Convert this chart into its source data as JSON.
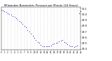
{
  "title": "Milwaukee Barometric Pressure per Minute (24 Hours)",
  "bg_color": "#ffffff",
  "dot_color": "#0000cc",
  "grid_color": "#aaaaaa",
  "ylim": [
    29.38,
    30.12
  ],
  "xlim": [
    0,
    1440
  ],
  "yticks": [
    29.4,
    29.5,
    29.6,
    29.7,
    29.8,
    29.9,
    30.0,
    30.1
  ],
  "ytick_labels": [
    "29.4",
    "29.5",
    "29.6",
    "29.7",
    "29.8",
    "29.9",
    "30.0",
    "30.1"
  ],
  "xtick_positions": [
    0,
    60,
    120,
    180,
    240,
    300,
    360,
    420,
    480,
    540,
    600,
    660,
    720,
    780,
    840,
    900,
    960,
    1020,
    1080,
    1140,
    1200,
    1260,
    1320,
    1380,
    1440
  ],
  "xtick_labels": [
    "0",
    "1",
    "2",
    "3",
    "4",
    "5",
    "6",
    "7",
    "8",
    "9",
    "10",
    "11",
    "12",
    "13",
    "14",
    "15",
    "16",
    "17",
    "18",
    "19",
    "20",
    "21",
    "22",
    "23",
    "24"
  ],
  "vgrid_positions": [
    60,
    120,
    180,
    240,
    300,
    360,
    420,
    480,
    540,
    600,
    660,
    720,
    780,
    840,
    900,
    960,
    1020,
    1080,
    1140,
    1200,
    1260,
    1320,
    1380
  ],
  "data_x": [
    0,
    30,
    60,
    90,
    120,
    150,
    180,
    210,
    240,
    270,
    300,
    330,
    360,
    390,
    420,
    450,
    480,
    510,
    540,
    570,
    600,
    630,
    660,
    690,
    720,
    750,
    780,
    810,
    840,
    870,
    900,
    930,
    960,
    990,
    1020,
    1050,
    1080,
    1110,
    1140,
    1170,
    1200,
    1230,
    1260,
    1290,
    1320,
    1350,
    1380,
    1410,
    1440
  ],
  "data_y": [
    30.08,
    30.07,
    30.05,
    30.04,
    30.02,
    30.0,
    29.99,
    29.97,
    29.95,
    29.93,
    29.91,
    29.88,
    29.86,
    29.83,
    29.8,
    29.77,
    29.73,
    29.7,
    29.66,
    29.63,
    29.59,
    29.56,
    29.52,
    29.5,
    29.47,
    29.45,
    29.44,
    29.44,
    29.44,
    29.45,
    29.46,
    29.48,
    29.49,
    29.5,
    29.51,
    29.53,
    29.54,
    29.55,
    29.52,
    29.5,
    29.48,
    29.46,
    29.45,
    29.44,
    29.43,
    29.44,
    29.46,
    30.02,
    30.05
  ]
}
